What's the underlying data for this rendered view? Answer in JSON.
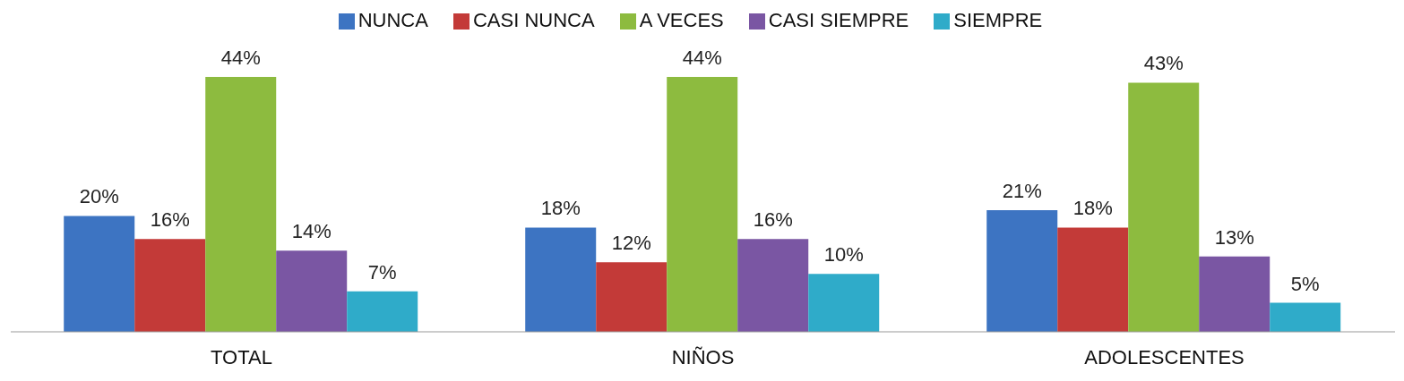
{
  "chart_data": {
    "type": "bar",
    "categories": [
      "TOTAL",
      "NIÑOS",
      "ADOLESCENTES"
    ],
    "series": [
      {
        "name": "NUNCA",
        "color": "#3d74c2",
        "values": [
          20,
          18,
          21
        ],
        "value_labels": [
          "20%",
          "18%",
          "21%"
        ]
      },
      {
        "name": "CASI NUNCA",
        "color": "#c33a38",
        "values": [
          16,
          12,
          18
        ],
        "value_labels": [
          "16%",
          "12%",
          "18%"
        ]
      },
      {
        "name": "A VECES",
        "color": "#8dbb3f",
        "values": [
          44,
          44,
          43
        ],
        "value_labels": [
          "44%",
          "44%",
          "43%"
        ]
      },
      {
        "name": "CASI SIEMPRE",
        "color": "#7a56a3",
        "values": [
          14,
          16,
          13
        ],
        "value_labels": [
          "14%",
          "16%",
          "13%"
        ]
      },
      {
        "name": "SIEMPRE",
        "color": "#2fabc9",
        "values": [
          7,
          10,
          5
        ],
        "value_labels": [
          "7%",
          "10%",
          "5%"
        ]
      }
    ],
    "legend": "top",
    "grid": false
  }
}
